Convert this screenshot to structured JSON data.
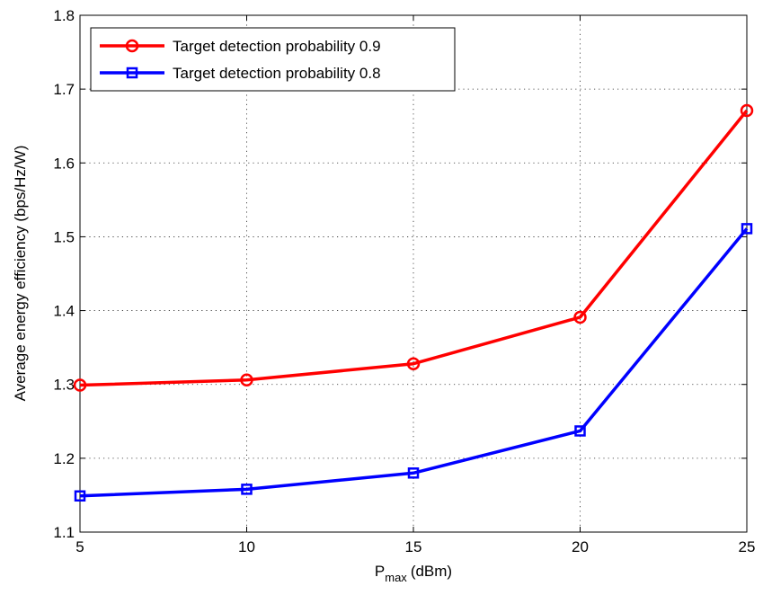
{
  "chart_data": {
    "type": "line",
    "title": "",
    "xlabel": {
      "main": "P",
      "sub": "max",
      "unit": "(dBm)"
    },
    "ylabel": "Average energy efficiency (bps/Hz/W)",
    "x": [
      5,
      10,
      15,
      20,
      25
    ],
    "xlim": [
      5,
      25
    ],
    "ylim": [
      1.1,
      1.8
    ],
    "xticks": [
      "5",
      "10",
      "15",
      "20",
      "25"
    ],
    "yticks": [
      "1.1",
      "1.2",
      "1.3",
      "1.4",
      "1.5",
      "1.6",
      "1.7",
      "1.8"
    ],
    "grid": true,
    "legend_position": "top-left",
    "series": [
      {
        "name": "Target detection probability 0.9",
        "values": [
          1.299,
          1.306,
          1.328,
          1.391,
          1.671
        ],
        "color": "#ff0000",
        "marker": "circle"
      },
      {
        "name": "Target detection probability 0.8",
        "values": [
          1.149,
          1.158,
          1.18,
          1.237,
          1.511
        ],
        "color": "#0000ff",
        "marker": "square"
      }
    ]
  }
}
